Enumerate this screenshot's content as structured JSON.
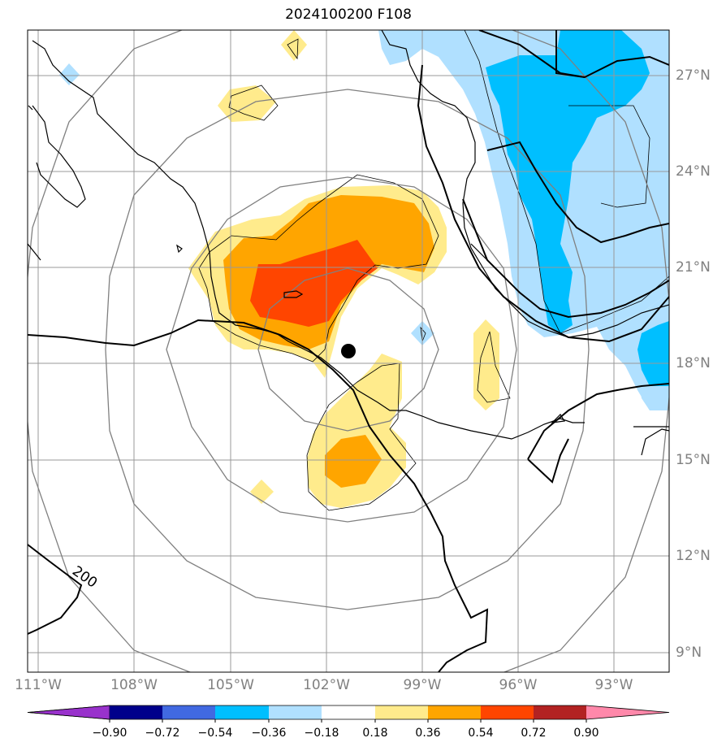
{
  "title": "2024100200 F108",
  "map": {
    "lon_labels": [
      "111°W",
      "108°W",
      "105°W",
      "102°W",
      "99°W",
      "96°W",
      "93°W"
    ],
    "lat_labels": [
      "27°N",
      "24°N",
      "21°N",
      "18°N",
      "15°N",
      "12°N",
      "9°N"
    ],
    "contour_label": "200",
    "storm_center": {
      "lat": 18.4,
      "lon": -101.3
    }
  },
  "colorbar": {
    "tick_labels": [
      "−0.90",
      "−0.72",
      "−0.54",
      "−0.36",
      "−0.18",
      "0.18",
      "0.36",
      "0.54",
      "0.72",
      "0.90"
    ],
    "colors": [
      "#9932cc",
      "#00008b",
      "#4169e1",
      "#00bfff",
      "#b0e0ff",
      "#ffffff",
      "#ffeb8c",
      "#ffa500",
      "#ff4500",
      "#b22222",
      "#ff88aa"
    ]
  },
  "shading_colors": {
    "yellow": "#ffeb8c",
    "orange": "#ffa500",
    "red_orange": "#ff4500",
    "light_blue": "#b0e0ff",
    "deep_sky_blue": "#00bfff"
  }
}
